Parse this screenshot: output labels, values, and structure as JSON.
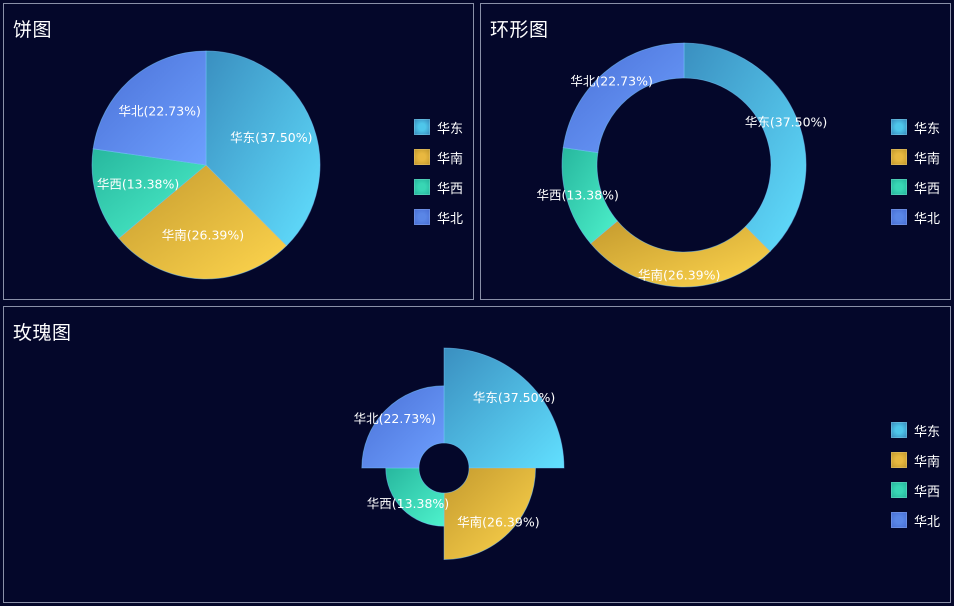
{
  "panels": {
    "pie": {
      "title": "饼图"
    },
    "donut": {
      "title": "环形图"
    },
    "rose": {
      "title": "玫瑰图"
    }
  },
  "legend": [
    {
      "label": "华东",
      "color": "#4ec6ea"
    },
    {
      "label": "华南",
      "color": "#e8b840"
    },
    {
      "label": "华西",
      "color": "#38d6b4"
    },
    {
      "label": "华北",
      "color": "#5a86e6"
    }
  ],
  "chart_data": [
    {
      "type": "pie",
      "title": "饼图",
      "categories": [
        "华东",
        "华南",
        "华西",
        "华北"
      ],
      "values": [
        37.5,
        26.39,
        13.38,
        22.73
      ],
      "labels": [
        "华东(37.50%)",
        "华南(26.39%)",
        "华西(13.38%)",
        "华北(22.73%)"
      ]
    },
    {
      "type": "pie",
      "variant": "donut",
      "title": "环形图",
      "categories": [
        "华东",
        "华南",
        "华西",
        "华北"
      ],
      "values": [
        37.5,
        26.39,
        13.38,
        22.73
      ],
      "labels": [
        "华东(37.50%)",
        "华南(26.39%)",
        "华西(13.38%)",
        "华北(22.73%)"
      ]
    },
    {
      "type": "pie",
      "variant": "rose",
      "title": "玫瑰图",
      "categories": [
        "华东",
        "华南",
        "华西",
        "华北"
      ],
      "values": [
        37.5,
        26.39,
        13.38,
        22.73
      ],
      "labels": [
        "华东(37.50%)",
        "华南(26.39%)",
        "华西(13.38%)",
        "华北(22.73%)"
      ]
    }
  ]
}
